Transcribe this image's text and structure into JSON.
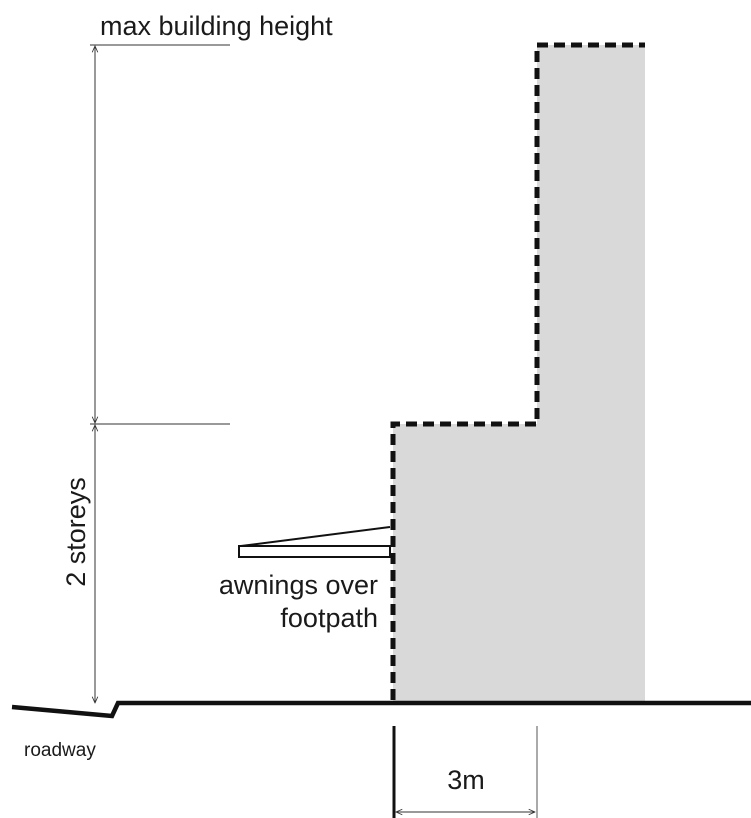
{
  "diagram": {
    "labels": {
      "max_height": "max building height",
      "storeys": "2 storeys",
      "awnings_line1": "awnings over",
      "awnings_line2": "footpath",
      "roadway": "roadway",
      "setback": "3m"
    },
    "colors": {
      "building_fill": "#d9d9da",
      "outline": "#111111",
      "dimension_line": "#333333",
      "text": "#1a1a1a"
    }
  }
}
